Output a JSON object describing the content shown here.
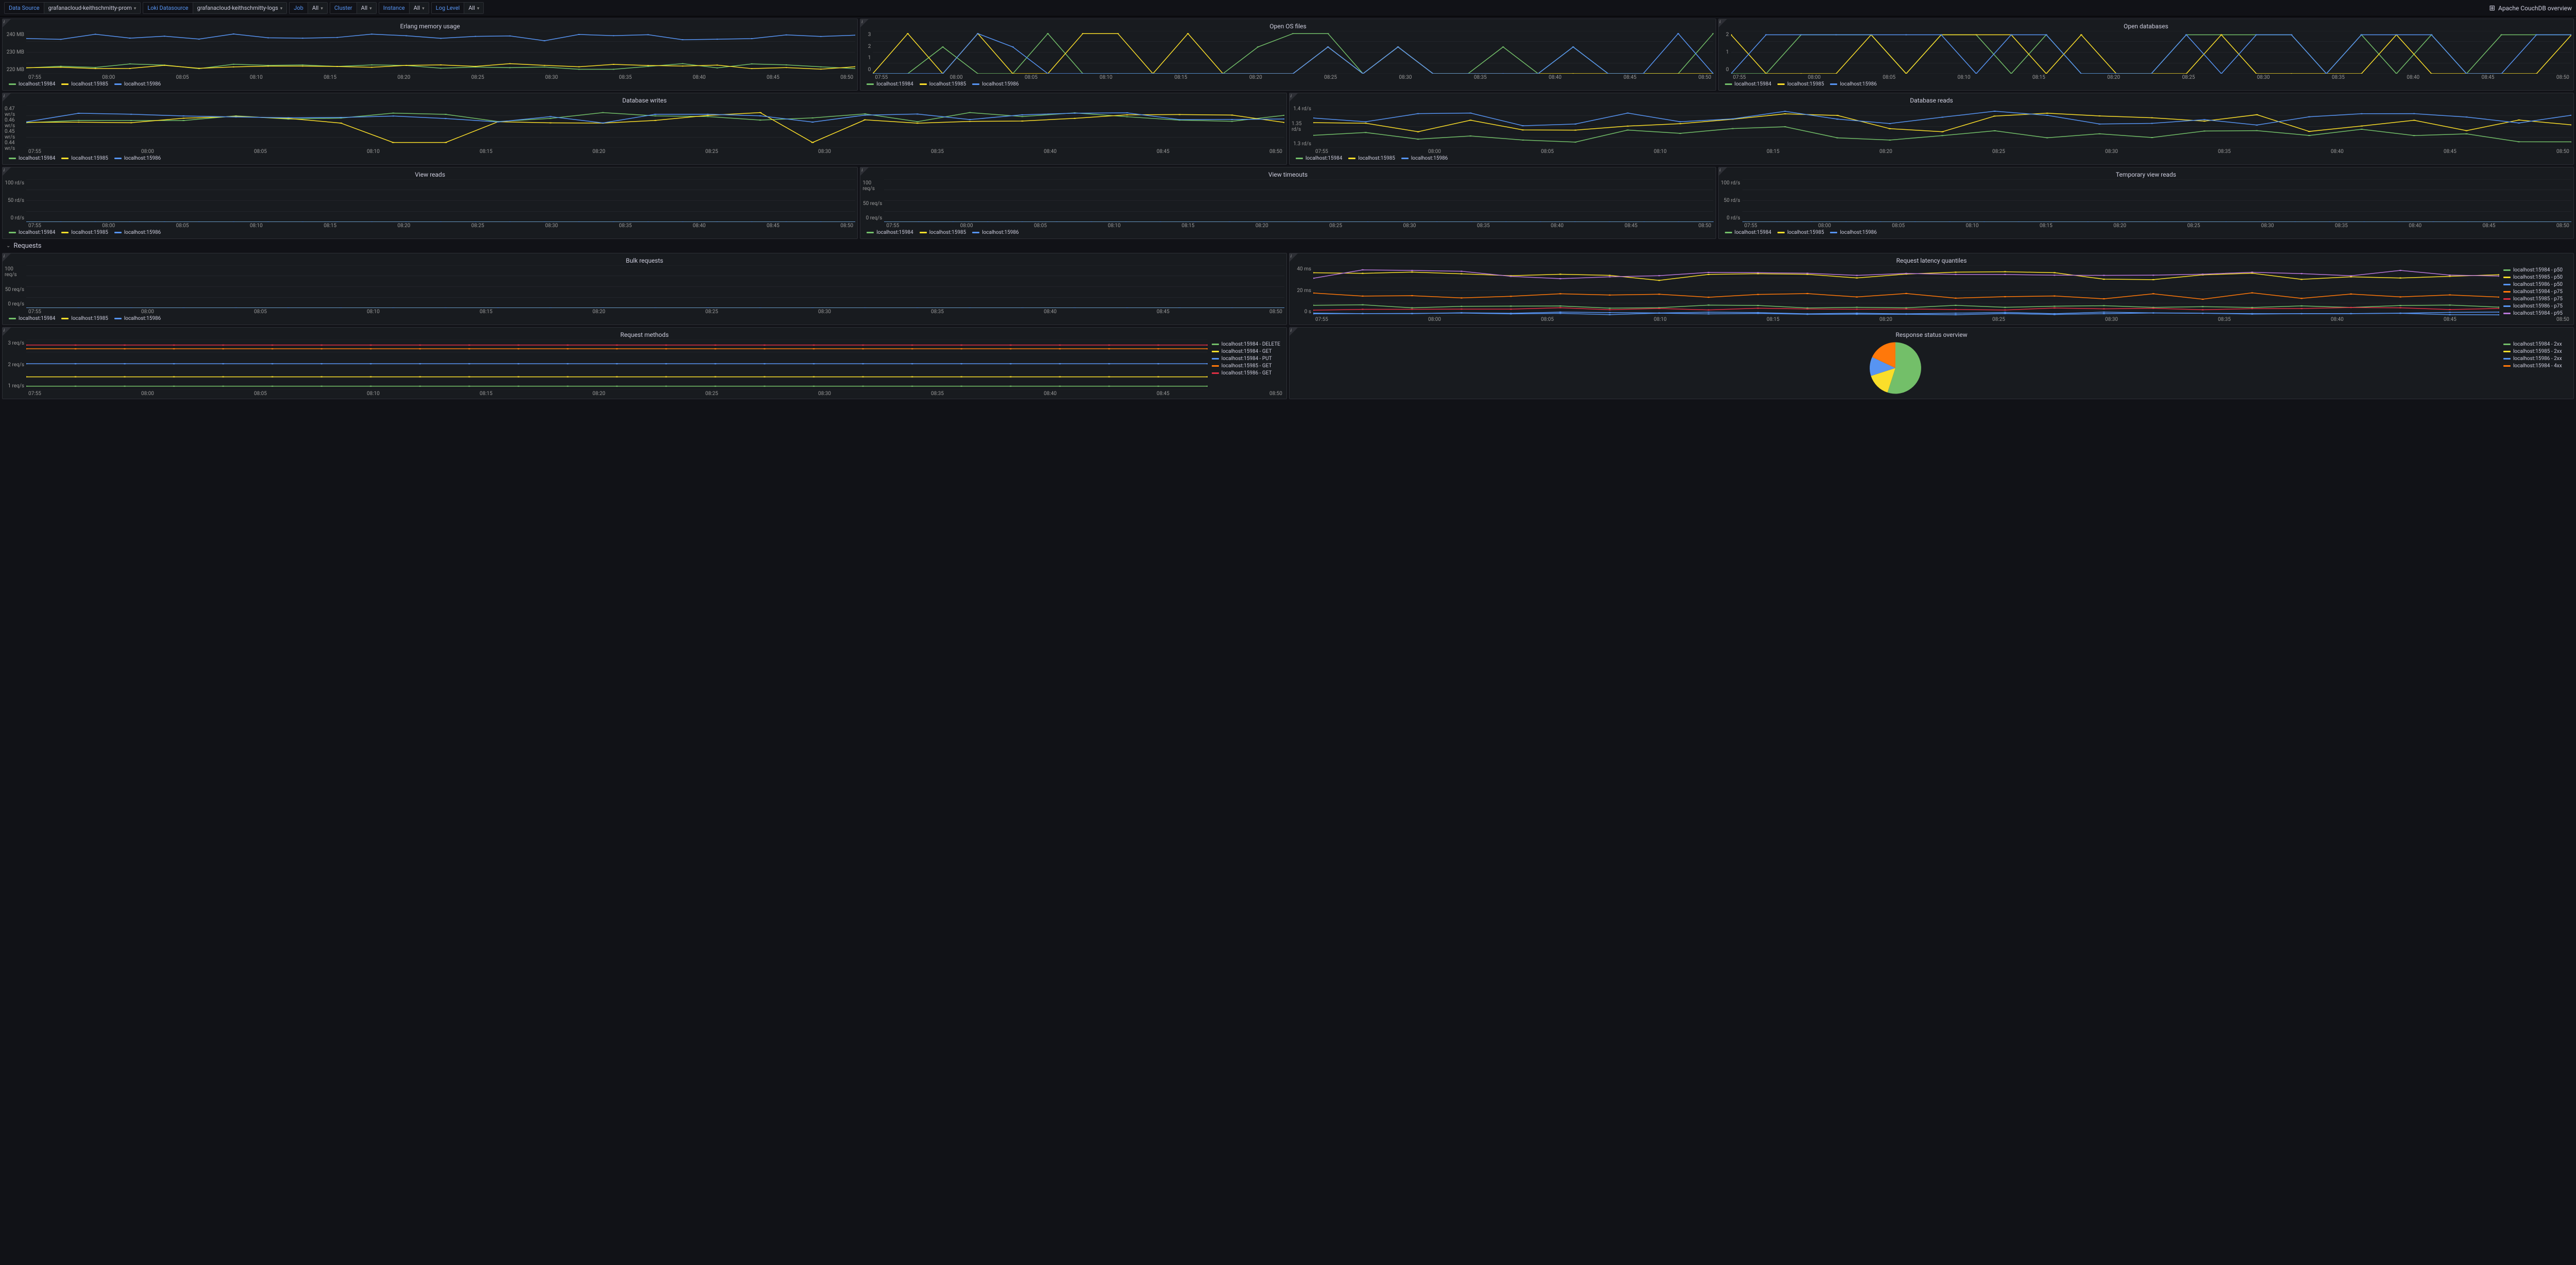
{
  "colors": {
    "green": "#73bf69",
    "yellow": "#fade2a",
    "blue": "#5794f2",
    "orange": "#ff780a",
    "red": "#e02f44",
    "purple": "#b877d9",
    "grid": "#2d2f35"
  },
  "toolbar": {
    "dataSource": {
      "label": "Data Source",
      "value": "grafanacloud-keithschmitty-prom"
    },
    "lokiDatasource": {
      "label": "Loki Datasource",
      "value": "grafanacloud-keithschmitty-logs"
    },
    "job": {
      "label": "Job",
      "value": "All"
    },
    "cluster": {
      "label": "Cluster",
      "value": "All"
    },
    "instance": {
      "label": "Instance",
      "value": "All"
    },
    "logLevel": {
      "label": "Log Level",
      "value": "All"
    },
    "link": "Apache CouchDB overview"
  },
  "legends": {
    "hosts": [
      "localhost:15984",
      "localhost:15985",
      "localhost:15986"
    ],
    "methods": [
      "localhost:15984 - DELETE",
      "localhost:15984 - GET",
      "localhost:15984 - PUT",
      "localhost:15985 - GET",
      "localhost:15986 - GET"
    ],
    "latency": [
      "localhost:15984 - p50",
      "localhost:15985 - p50",
      "localhost:15986 - p50",
      "localhost:15984 - p75",
      "localhost:15985 - p75",
      "localhost:15986 - p75",
      "localhost:15984 - p95"
    ],
    "status": [
      "localhost:15984 - 2xx",
      "localhost:15985 - 2xx",
      "localhost:15986 - 2xx",
      "localhost:15984 - 4xx"
    ]
  },
  "xticks": [
    "07:55",
    "08:00",
    "08:05",
    "08:10",
    "08:15",
    "08:20",
    "08:25",
    "08:30",
    "08:35",
    "08:40",
    "08:45",
    "08:50"
  ],
  "panels": {
    "erlangMem": {
      "title": "Erlang memory usage",
      "yticks": [
        "240 MB",
        "230 MB",
        "220 MB"
      ]
    },
    "openFiles": {
      "title": "Open OS files",
      "yticks": [
        "3",
        "2",
        "1",
        "0"
      ]
    },
    "openDbs": {
      "title": "Open databases",
      "yticks": [
        "2",
        "1",
        "0"
      ]
    },
    "dbWrites": {
      "title": "Database writes",
      "yticks": [
        "0.47 wr/s",
        "0.46 wr/s",
        "0.45 wr/s",
        "0.44 wr/s"
      ]
    },
    "dbReads": {
      "title": "Database reads",
      "yticks": [
        "1.4 rd/s",
        "1.35 rd/s",
        "1.3 rd/s"
      ]
    },
    "viewReads": {
      "title": "View reads",
      "yticks": [
        "100 rd/s",
        "50 rd/s",
        "0 rd/s"
      ]
    },
    "viewTimeouts": {
      "title": "View timeouts",
      "yticks": [
        "100 req/s",
        "50 req/s",
        "0 req/s"
      ]
    },
    "tempViewReads": {
      "title": "Temporary view reads",
      "yticks": [
        "100 rd/s",
        "50 rd/s",
        "0 rd/s"
      ]
    },
    "bulkReq": {
      "title": "Bulk requests",
      "yticks": [
        "100 req/s",
        "50 req/s",
        "0 req/s"
      ]
    },
    "latency": {
      "title": "Request latency quantiles",
      "yticks": [
        "40 ms",
        "20 ms",
        "0 s"
      ]
    },
    "methods": {
      "title": "Request methods",
      "yticks": [
        "3 req/s",
        "2 req/s",
        "1 req/s"
      ]
    },
    "status": {
      "title": "Response status overview"
    }
  },
  "section": {
    "requests": "Requests"
  },
  "pie": {
    "slices": [
      {
        "color": "#73bf69",
        "pct": 55
      },
      {
        "color": "#fade2a",
        "pct": 15
      },
      {
        "color": "#5794f2",
        "pct": 12
      },
      {
        "color": "#ff780a",
        "pct": 18
      }
    ]
  }
}
